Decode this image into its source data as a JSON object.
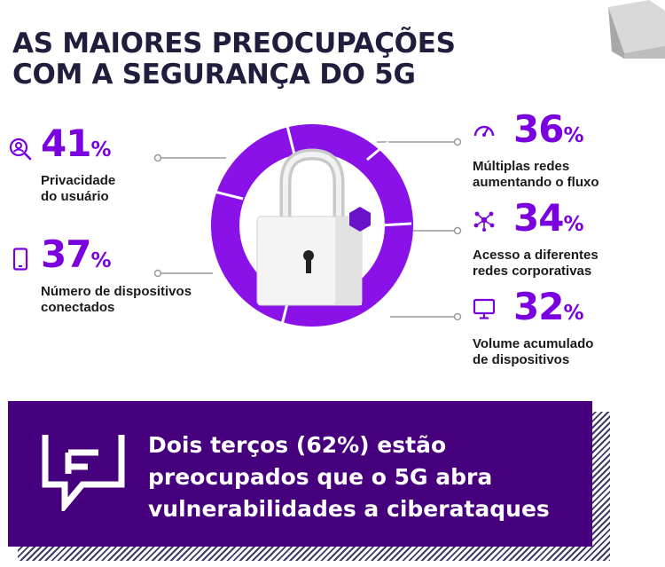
{
  "title": {
    "line1": "AS MAIORES PREOCUPAÇÕES",
    "line2": "COM A SEGURANÇA DO 5G"
  },
  "colors": {
    "accent": "#7a00e0",
    "banner": "#46007e",
    "title": "#1f1f3d"
  },
  "stats": [
    {
      "icon": "user-search-icon",
      "value": "41",
      "unit": "%",
      "label": "Privacidade\ndo usuário"
    },
    {
      "icon": "smartphone-icon",
      "value": "37",
      "unit": "%",
      "label": "Número de dispositivos\nconectados"
    },
    {
      "icon": "speedometer-icon",
      "value": "36",
      "unit": "%",
      "label": "Múltiplas redes\naumentando o fluxo"
    },
    {
      "icon": "network-nodes-icon",
      "value": "34",
      "unit": "%",
      "label": "Acesso a diferentes\nredes corporativas"
    },
    {
      "icon": "monitor-icon",
      "value": "32",
      "unit": "%",
      "label": "Volume acumulado\nde dispositivos"
    }
  ],
  "center_graphic": {
    "icon": "padlock-icon"
  },
  "banner": {
    "icon": "chat-document-icon",
    "line1": "Dois terços (62%) estão",
    "line2": "preocupados que o 5G abra",
    "line3": "vulnerabilidades a ciberataques"
  }
}
